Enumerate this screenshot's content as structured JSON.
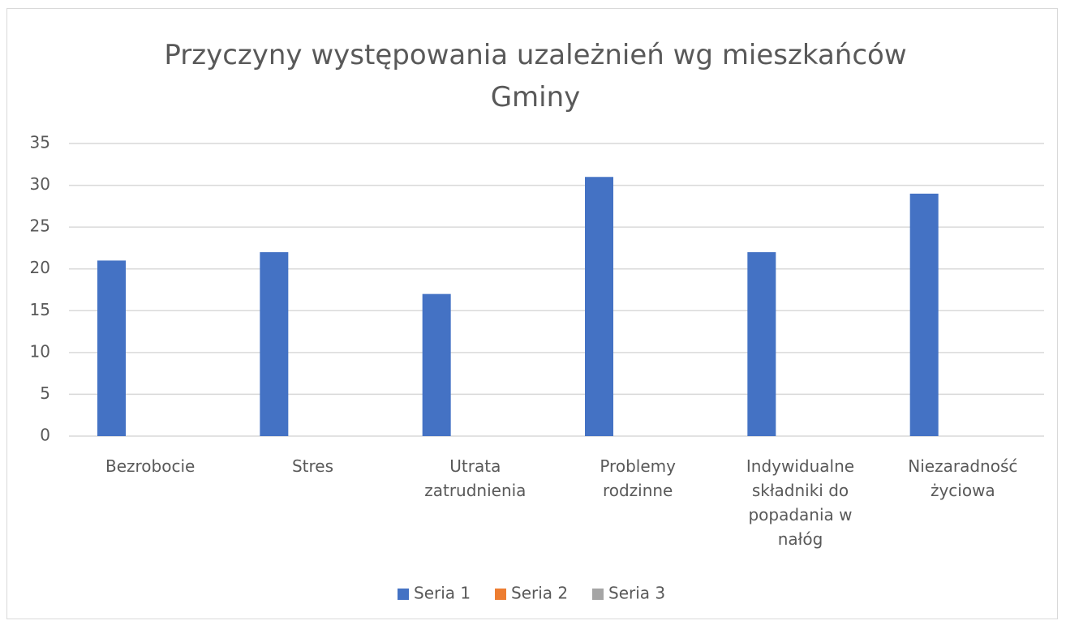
{
  "chart_data": {
    "type": "bar",
    "title": "Przyczyny występowania uzależnień wg mieszkańców Gminy",
    "categories": [
      "Bezrobocie",
      "Stres",
      "Utrata zatrudnienia",
      "Problemy rodzinne",
      "Indywidualne składniki do popadania w nałóg",
      "Niezaradność życiowa"
    ],
    "series": [
      {
        "name": "Seria 1",
        "color": "#4472c4",
        "values": [
          21,
          22,
          17,
          31,
          22,
          29
        ]
      },
      {
        "name": "Seria 2",
        "color": "#ed7d31",
        "values": [
          null,
          null,
          null,
          null,
          null,
          null
        ]
      },
      {
        "name": "Seria 3",
        "color": "#a5a5a5",
        "values": [
          null,
          null,
          null,
          null,
          null,
          null
        ]
      }
    ],
    "ylim": [
      0,
      35
    ],
    "yticks": [
      0,
      5,
      10,
      15,
      20,
      25,
      30,
      35
    ],
    "grid": true,
    "legend": "bottom"
  }
}
